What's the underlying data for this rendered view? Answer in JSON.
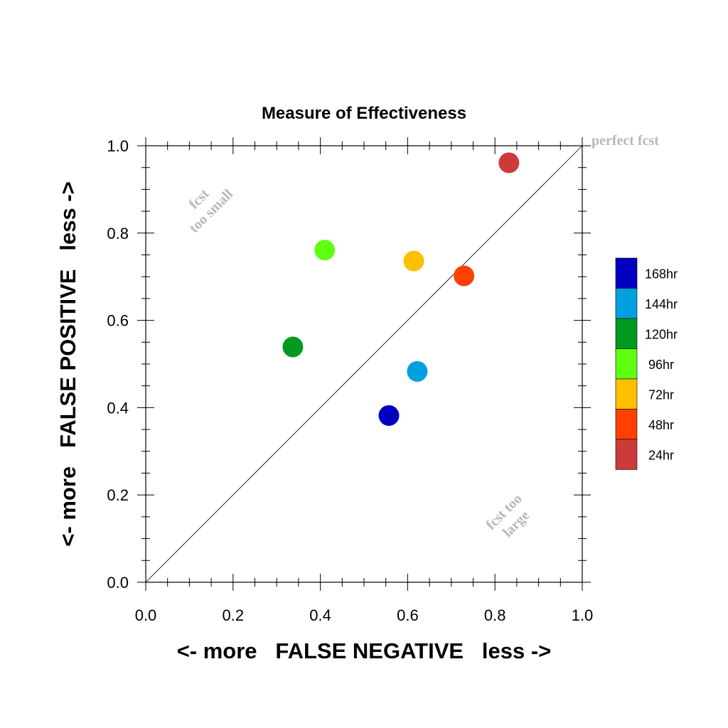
{
  "chart_data": {
    "type": "scatter",
    "title": "Measure of Effectiveness",
    "xlabel": "<- more   FALSE NEGATIVE   less ->",
    "ylabel": "<- more   FALSE POSITIVE   less ->",
    "xlim": [
      0.0,
      1.0
    ],
    "ylim": [
      0.0,
      1.0
    ],
    "x_ticks": [
      "0.0",
      "0.2",
      "0.4",
      "0.6",
      "0.8",
      "1.0"
    ],
    "y_ticks": [
      "0.0",
      "0.2",
      "0.4",
      "0.6",
      "0.8",
      "1.0"
    ],
    "grid": false,
    "reference_line": "diagonal",
    "legend_position": "right",
    "series": [
      {
        "name": "168hr",
        "color": "#0000c0",
        "x": 0.557,
        "y": 0.382
      },
      {
        "name": "144hr",
        "color": "#00a0e0",
        "x": 0.622,
        "y": 0.483
      },
      {
        "name": "120hr",
        "color": "#009a20",
        "x": 0.337,
        "y": 0.539
      },
      {
        "name": "96hr",
        "color": "#60ff10",
        "x": 0.41,
        "y": 0.761
      },
      {
        "name": "72hr",
        "color": "#ffc000",
        "x": 0.614,
        "y": 0.736
      },
      {
        "name": "48hr",
        "color": "#ff4000",
        "x": 0.729,
        "y": 0.702
      },
      {
        "name": "24hr",
        "color": "#cc3a3a",
        "x": 0.832,
        "y": 0.961
      }
    ],
    "annotations": {
      "perfect": "perfect fcst",
      "too_small": [
        "fcst",
        "too small"
      ],
      "too_large": [
        "fcst too",
        "large"
      ]
    }
  }
}
